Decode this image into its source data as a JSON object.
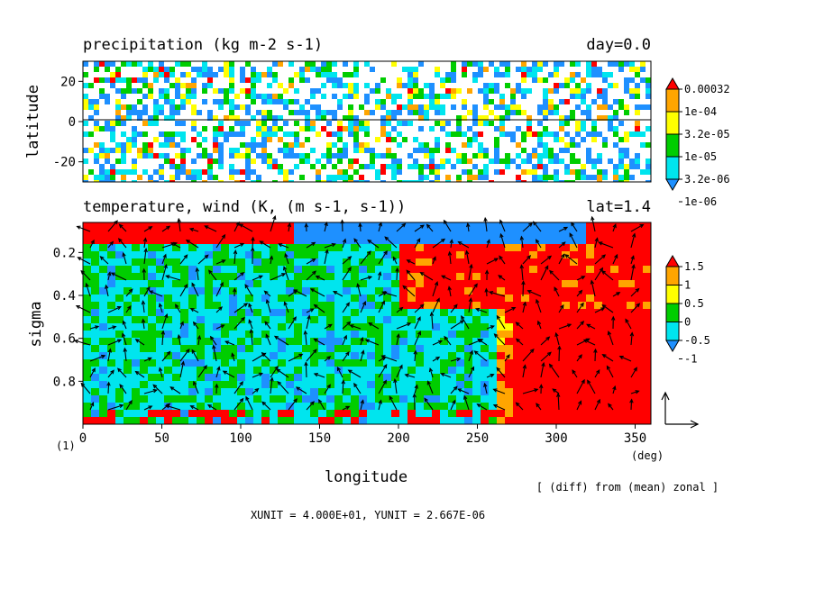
{
  "chart_data": [
    {
      "type": "heatmap",
      "title": "precipitation (kg m-2 s-1)",
      "title_right": "day=0.0",
      "ylabel": "latitude",
      "xlim": [
        0,
        360
      ],
      "ylim": [
        -30,
        30
      ],
      "yticks": [
        "20",
        "0",
        "-20"
      ],
      "ytick_values": [
        20,
        0,
        -20
      ],
      "zero_line": true,
      "colorbar": {
        "labels": [
          "0.00032",
          "1e-04",
          "3.2e-05",
          "1e-05",
          "3.2e-06",
          "1e-06"
        ],
        "colors": [
          "#1e90ff",
          "#00e5ee",
          "#00cd00",
          "#ffff00",
          "#ffa500",
          "#ff0000"
        ]
      }
    },
    {
      "type": "heatmap",
      "title": "temperature, wind (K, (m s-1, s-1))",
      "title_right": "lat=1.4",
      "ylabel": "sigma",
      "xlabel": "longitude",
      "xunit": "(deg)",
      "xlim": [
        0,
        360
      ],
      "ylim": [
        1.0,
        0.06
      ],
      "xticks": [
        "0",
        "50",
        "100",
        "150",
        "200",
        "250",
        "300",
        "350"
      ],
      "xtick_values": [
        0,
        50,
        100,
        150,
        200,
        250,
        300,
        350
      ],
      "yticks": [
        "0.2",
        "0.4",
        "0.6",
        "0.8"
      ],
      "ytick_values": [
        0.2,
        0.4,
        0.6,
        0.8
      ],
      "colorbar": {
        "labels": [
          "1.5",
          "1",
          "0.5",
          "0",
          "-0.5",
          "-1"
        ],
        "colors": [
          "#1e90ff",
          "#00e5ee",
          "#00cd00",
          "#ffff00",
          "#ffa500",
          "#ff0000"
        ]
      },
      "vectors": true
    }
  ],
  "annotations": {
    "frame_number": "(1)",
    "diff_note": "[ (diff) from (mean) zonal ]",
    "units_note": "XUNIT = 4.000E+01, YUNIT = 2.667E-06"
  }
}
